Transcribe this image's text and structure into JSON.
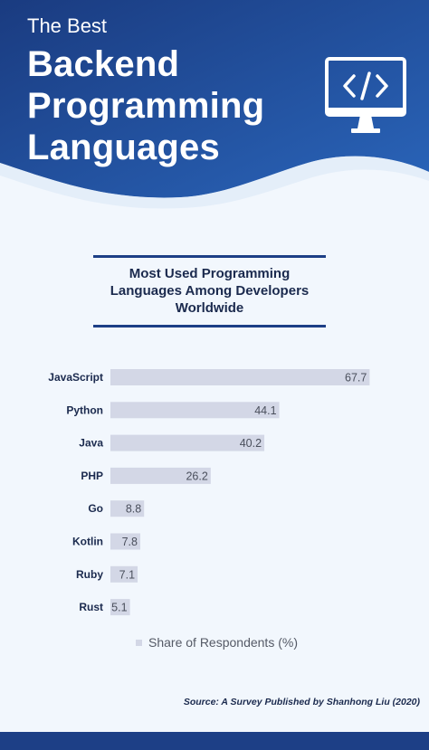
{
  "header": {
    "kicker": "The Best",
    "title_lines": [
      "Backend",
      "Programming",
      "Languages"
    ],
    "icon": "code-monitor-icon"
  },
  "chart_heading": {
    "title_lines": [
      "Most Used Programming",
      "Languages Among Developers",
      "Worldwide"
    ]
  },
  "chart_data": {
    "type": "bar",
    "orientation": "horizontal",
    "categories": [
      "JavaScript",
      "Python",
      "Java",
      "PHP",
      "Go",
      "Kotlin",
      "Ruby",
      "Rust"
    ],
    "series": [
      {
        "name": "Share of Respondents (%)",
        "values": [
          67.7,
          44.1,
          40.2,
          26.2,
          8.8,
          7.8,
          7.1,
          5.1
        ]
      }
    ],
    "data_labels": true,
    "grid": false,
    "legend": "bottom"
  },
  "legend": {
    "label": "Share of Respondents (%)"
  },
  "source": "Source: A Survey Published by Shanhong Liu (2020)",
  "colors": {
    "header_dark": "#1a3b80",
    "header_light": "#2a65ba",
    "bar": "#d3d7e6",
    "bar_label": "#4a4f5c",
    "category_label": "#1b2a4e",
    "background": "#f2f7fd"
  }
}
